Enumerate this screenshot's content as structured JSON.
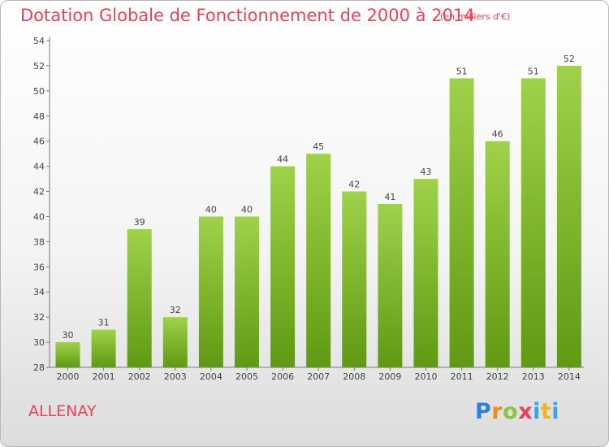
{
  "header": {
    "title": "Dotation Globale de Fonctionnement de 2000 à 2014",
    "unit": "(en milliers d'€)"
  },
  "footer": {
    "commune": "ALLENAY",
    "logo": "Proxiti"
  },
  "colors": {
    "title": "#e8425b",
    "bar_top": "#9fd24a",
    "bar_bottom": "#5f9a12"
  },
  "chart_data": {
    "type": "bar",
    "categories": [
      "2000",
      "2001",
      "2002",
      "2003",
      "2004",
      "2005",
      "2006",
      "2007",
      "2008",
      "2009",
      "2010",
      "2011",
      "2012",
      "2013",
      "2014"
    ],
    "values": [
      30,
      31,
      39,
      32,
      40,
      40,
      44,
      45,
      42,
      41,
      43,
      51,
      46,
      51,
      52
    ],
    "ylim": [
      28,
      54
    ],
    "yticks": [
      28,
      30,
      32,
      34,
      36,
      38,
      40,
      42,
      44,
      46,
      48,
      50,
      52,
      54
    ],
    "grid": false,
    "data_labels": true
  }
}
